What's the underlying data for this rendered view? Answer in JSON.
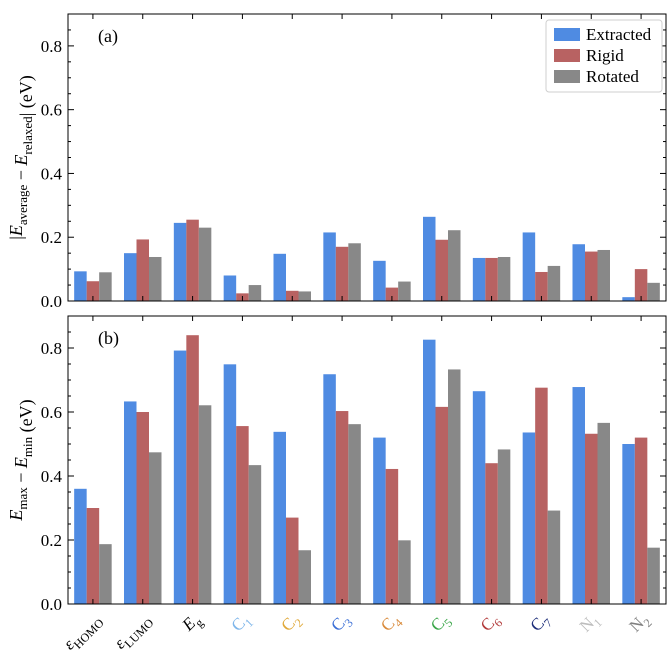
{
  "chart_data": [
    {
      "type": "bar",
      "panel_label": "(a)",
      "ylabel": "|E_average − E_relaxed| (eV)",
      "ylim": [
        0,
        0.9
      ],
      "yticks": [
        "0.0",
        "0.2",
        "0.4",
        "0.6",
        "0.8"
      ],
      "ytick_values": [
        0.0,
        0.2,
        0.4,
        0.6,
        0.8
      ],
      "legend_position": "top-right",
      "series": [
        {
          "name": "Extracted",
          "color": "#4f8be2",
          "values": [
            0.093,
            0.15,
            0.245,
            0.08,
            0.148,
            0.215,
            0.126,
            0.264,
            0.135,
            0.215,
            0.178,
            0.012
          ]
        },
        {
          "name": "Rigid",
          "color": "#b86262",
          "values": [
            0.062,
            0.193,
            0.255,
            0.024,
            0.032,
            0.17,
            0.042,
            0.192,
            0.135,
            0.091,
            0.155,
            0.1
          ]
        },
        {
          "name": "Rotated",
          "color": "#888888",
          "values": [
            0.09,
            0.138,
            0.23,
            0.05,
            0.03,
            0.181,
            0.061,
            0.222,
            0.138,
            0.11,
            0.16,
            0.057
          ]
        }
      ]
    },
    {
      "type": "bar",
      "panel_label": "(b)",
      "ylabel": "E_max − E_min (eV)",
      "ylim": [
        0,
        0.9
      ],
      "yticks": [
        "0.0",
        "0.2",
        "0.4",
        "0.6",
        "0.8"
      ],
      "ytick_values": [
        0.0,
        0.2,
        0.4,
        0.6,
        0.8
      ],
      "series": [
        {
          "name": "Extracted",
          "color": "#4f8be2",
          "values": [
            0.36,
            0.633,
            0.792,
            0.749,
            0.538,
            0.718,
            0.52,
            0.826,
            0.665,
            0.536,
            0.678,
            0.5
          ]
        },
        {
          "name": "Rigid",
          "color": "#b86262",
          "values": [
            0.3,
            0.6,
            0.84,
            0.556,
            0.27,
            0.603,
            0.422,
            0.616,
            0.44,
            0.676,
            0.532,
            0.52
          ]
        },
        {
          "name": "Rotated",
          "color": "#888888",
          "values": [
            0.187,
            0.474,
            0.621,
            0.434,
            0.168,
            0.562,
            0.199,
            0.733,
            0.483,
            0.292,
            0.566,
            0.176
          ]
        }
      ]
    }
  ],
  "categories": [
    {
      "main": "ε",
      "sub": "HOMO",
      "color": "#000000"
    },
    {
      "main": "ε",
      "sub": "LUMO",
      "color": "#000000"
    },
    {
      "main": "E",
      "sub": "g",
      "color": "#000000"
    },
    {
      "main": "C",
      "sub": "1",
      "color": "#7fb6ea"
    },
    {
      "main": "C",
      "sub": "2",
      "color": "#e0a93a"
    },
    {
      "main": "C",
      "sub": "3",
      "color": "#3b6fd6"
    },
    {
      "main": "C",
      "sub": "4",
      "color": "#d98a3a"
    },
    {
      "main": "C",
      "sub": "5",
      "color": "#3aa648"
    },
    {
      "main": "C",
      "sub": "6",
      "color": "#b23a3a"
    },
    {
      "main": "C",
      "sub": "7",
      "color": "#1f2f7a"
    },
    {
      "main": "N",
      "sub": "1",
      "color": "#bdbdbd"
    },
    {
      "main": "N",
      "sub": "2",
      "color": "#808080"
    }
  ]
}
